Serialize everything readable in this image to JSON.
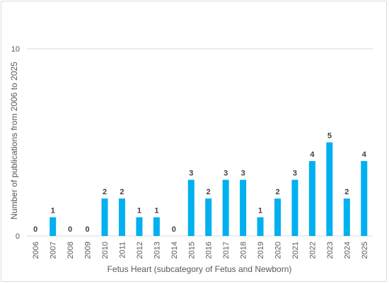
{
  "chart_data": {
    "type": "bar",
    "title": "",
    "xlabel": "Fetus Heart (subcategory of Fetus and Newborn)",
    "ylabel": "Number of publications from 2006 to 2025",
    "ylim": [
      0,
      10
    ],
    "y_ticks": [
      "0",
      "10"
    ],
    "grid": true,
    "legend": "none",
    "colors": {
      "bar": "#00B0F0",
      "grid": "#d9d9d9",
      "text": "#595959",
      "label": "#404040"
    },
    "categories": [
      "2006",
      "2007",
      "2008",
      "2009",
      "2010",
      "2011",
      "2012",
      "2013",
      "2014",
      "2015",
      "2016",
      "2017",
      "2018",
      "2019",
      "2020",
      "2021",
      "2022",
      "2023",
      "2024",
      "2025"
    ],
    "values": [
      0,
      1,
      0,
      0,
      2,
      2,
      1,
      1,
      0,
      3,
      2,
      3,
      3,
      1,
      2,
      3,
      4,
      5,
      2,
      4
    ]
  }
}
